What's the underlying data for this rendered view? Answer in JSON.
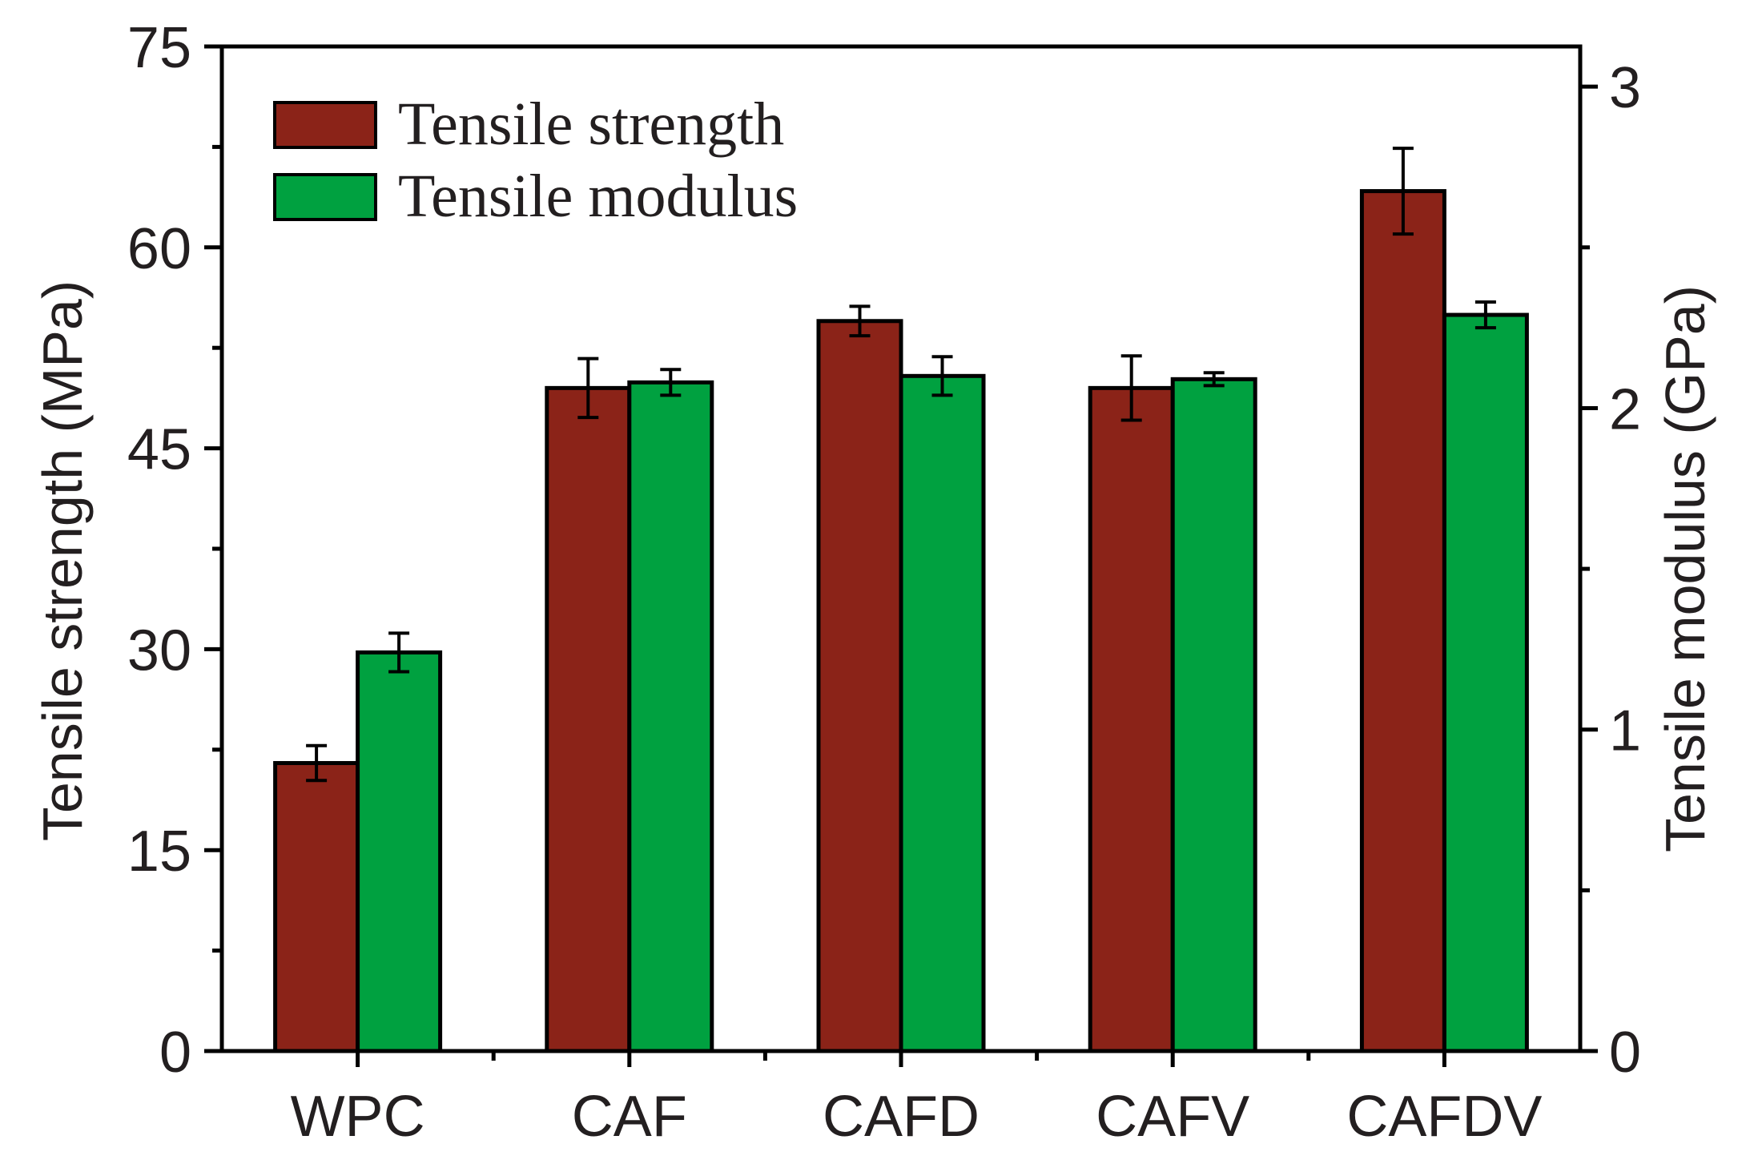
{
  "chart_data": {
    "type": "bar",
    "categories": [
      "WPC",
      "CAF",
      "CAFD",
      "CAFV",
      "CAFDV"
    ],
    "series": [
      {
        "name": "Tensile strength",
        "axis": "left",
        "color": "#8b2318",
        "values": [
          21.5,
          49.5,
          54.5,
          49.5,
          64.2
        ],
        "errors": [
          1.3,
          2.2,
          1.1,
          2.4,
          3.2
        ]
      },
      {
        "name": "Tensile modulus",
        "axis": "right",
        "color": "#00a140",
        "values": [
          1.24,
          2.08,
          2.1,
          2.09,
          2.29
        ],
        "errors": [
          0.06,
          0.04,
          0.06,
          0.02,
          0.04
        ]
      }
    ],
    "y_left": {
      "label": "Tensile strength (MPa)",
      "range": [
        0,
        75
      ],
      "major_ticks": [
        0,
        15,
        30,
        45,
        60,
        75
      ],
      "tick_labels": [
        "0",
        "15",
        "30",
        "45",
        "60",
        "75"
      ],
      "minor_ticks": [
        7.5,
        22.5,
        37.5,
        52.5,
        67.5
      ]
    },
    "y_right": {
      "label": "Tensile modulus (GPa)",
      "range": [
        0,
        3.125
      ],
      "major_ticks": [
        0,
        1,
        2,
        3
      ],
      "tick_labels": [
        "0",
        "1",
        "2",
        "3"
      ],
      "minor_ticks": [
        0.5,
        1.5,
        2.5
      ]
    },
    "legend": {
      "position": "top-left",
      "entries": [
        "Tensile strength",
        "Tensile modulus"
      ]
    }
  }
}
